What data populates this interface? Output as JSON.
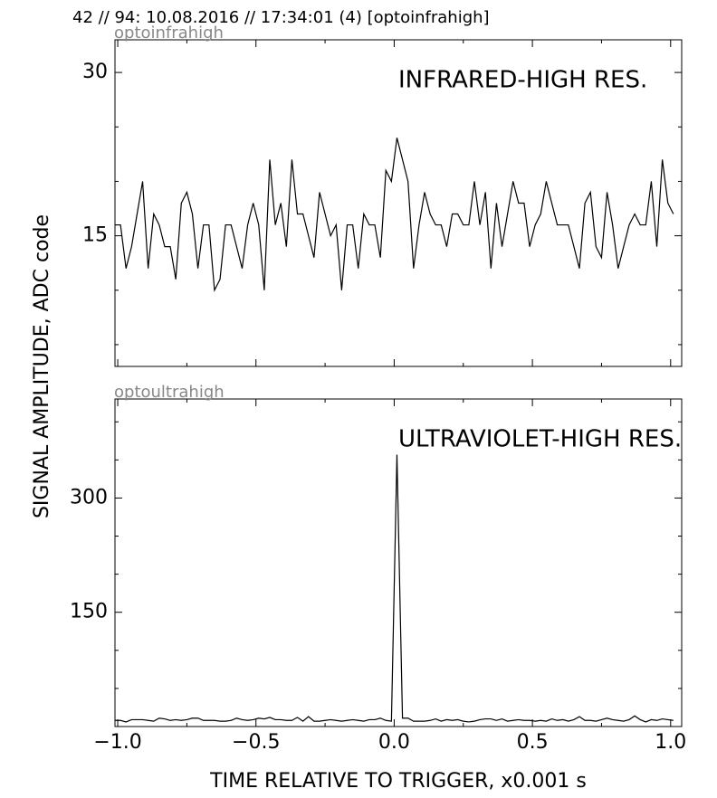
{
  "title": "42 // 94:   10.08.2016 // 17:34:01 (4)  [optoinfrahigh]",
  "ylabel": "SIGNAL AMPLITUDE,  ADC code",
  "xlabel": "TIME RELATIVE TO TRIGGER,   x0.001 s",
  "chart_data": [
    {
      "type": "line",
      "subtitle": "optoinfrahigh",
      "annotation": "INFRARED-HIGH RES.",
      "color": "#000000",
      "x": [
        -1.01,
        -0.99,
        -0.97,
        -0.95,
        -0.93,
        -0.91,
        -0.89,
        -0.87,
        -0.85,
        -0.83,
        -0.81,
        -0.79,
        -0.77,
        -0.75,
        -0.73,
        -0.71,
        -0.69,
        -0.67,
        -0.65,
        -0.63,
        -0.61,
        -0.59,
        -0.57,
        -0.55,
        -0.53,
        -0.51,
        -0.49,
        -0.47,
        -0.45,
        -0.43,
        -0.41,
        -0.39,
        -0.37,
        -0.35,
        -0.33,
        -0.31,
        -0.29,
        -0.27,
        -0.25,
        -0.23,
        -0.21,
        -0.19,
        -0.17,
        -0.15,
        -0.13,
        -0.11,
        -0.09,
        -0.07,
        -0.05,
        -0.03,
        -0.01,
        0.01,
        0.03,
        0.05,
        0.07,
        0.09,
        0.11,
        0.13,
        0.15,
        0.17,
        0.19,
        0.21,
        0.23,
        0.25,
        0.27,
        0.29,
        0.31,
        0.33,
        0.35,
        0.37,
        0.39,
        0.41,
        0.43,
        0.45,
        0.47,
        0.49,
        0.51,
        0.53,
        0.55,
        0.57,
        0.59,
        0.61,
        0.63,
        0.65,
        0.67,
        0.69,
        0.71,
        0.73,
        0.75,
        0.77,
        0.79,
        0.81,
        0.83,
        0.85,
        0.87,
        0.89,
        0.91,
        0.93,
        0.95,
        0.97,
        0.99,
        1.01
      ],
      "values": [
        16,
        16,
        12,
        14,
        17,
        20,
        12,
        17,
        16,
        14,
        14,
        11,
        18,
        19,
        17,
        12,
        16,
        16,
        10,
        11,
        16,
        16,
        14,
        12,
        16,
        18,
        16,
        10,
        22,
        16,
        18,
        14,
        22,
        17,
        17,
        15,
        13,
        19,
        17,
        15,
        16,
        10,
        16,
        16,
        12,
        17,
        16,
        16,
        13,
        21,
        20,
        24,
        22,
        20,
        12,
        16,
        19,
        17,
        16,
        16,
        14,
        17,
        17,
        16,
        16,
        20,
        16,
        19,
        12,
        18,
        14,
        17,
        20,
        18,
        18,
        14,
        16,
        17,
        20,
        18,
        16,
        16,
        16,
        14,
        12,
        18,
        19,
        14,
        13,
        19,
        16,
        12,
        14,
        16,
        17,
        16,
        16,
        20,
        14,
        22,
        18,
        17
      ],
      "xlim": [
        -1.01,
        1.04
      ],
      "ylim": [
        3,
        33
      ],
      "xticks": [
        -1,
        -0.5,
        0,
        0.5,
        1
      ],
      "xminor": [
        -0.75,
        -0.25,
        0.25,
        0.75
      ],
      "xticklabels": false,
      "yticks": [
        15,
        30
      ],
      "yminor": [
        5,
        10,
        20,
        25
      ]
    },
    {
      "type": "line",
      "subtitle": "optoultrahigh",
      "annotation": "ULTRAVIOLET-HIGH RES.",
      "color": "#000000",
      "x": [
        -1.01,
        -0.99,
        -0.97,
        -0.95,
        -0.93,
        -0.91,
        -0.89,
        -0.87,
        -0.85,
        -0.83,
        -0.81,
        -0.79,
        -0.77,
        -0.75,
        -0.73,
        -0.71,
        -0.69,
        -0.67,
        -0.65,
        -0.63,
        -0.61,
        -0.59,
        -0.57,
        -0.55,
        -0.53,
        -0.51,
        -0.49,
        -0.47,
        -0.45,
        -0.43,
        -0.41,
        -0.39,
        -0.37,
        -0.35,
        -0.33,
        -0.31,
        -0.29,
        -0.27,
        -0.25,
        -0.23,
        -0.21,
        -0.19,
        -0.17,
        -0.15,
        -0.13,
        -0.11,
        -0.09,
        -0.07,
        -0.05,
        -0.03,
        -0.01,
        0.01,
        0.03,
        0.05,
        0.07,
        0.09,
        0.11,
        0.13,
        0.15,
        0.17,
        0.19,
        0.21,
        0.23,
        0.25,
        0.27,
        0.29,
        0.31,
        0.33,
        0.35,
        0.37,
        0.39,
        0.41,
        0.43,
        0.45,
        0.47,
        0.49,
        0.51,
        0.53,
        0.55,
        0.57,
        0.59,
        0.61,
        0.63,
        0.65,
        0.67,
        0.69,
        0.71,
        0.73,
        0.75,
        0.77,
        0.79,
        0.81,
        0.83,
        0.85,
        0.87,
        0.89,
        0.91,
        0.93,
        0.95,
        0.97,
        0.99,
        1.01
      ],
      "values": [
        8,
        8,
        6,
        9,
        9,
        9,
        8,
        7,
        11,
        10,
        8,
        9,
        8,
        9,
        11,
        11,
        8,
        8,
        8,
        7,
        7,
        8,
        11,
        9,
        8,
        9,
        11,
        10,
        12,
        9,
        9,
        8,
        8,
        12,
        7,
        13,
        7,
        7,
        8,
        9,
        8,
        7,
        8,
        9,
        8,
        7,
        9,
        9,
        11,
        8,
        7,
        357,
        11,
        11,
        7,
        7,
        7,
        8,
        10,
        7,
        9,
        8,
        9,
        7,
        6,
        7,
        9,
        10,
        10,
        8,
        10,
        7,
        8,
        9,
        8,
        8,
        7,
        8,
        7,
        10,
        8,
        9,
        7,
        9,
        13,
        8,
        8,
        7,
        9,
        11,
        9,
        8,
        7,
        9,
        14,
        9,
        6,
        9,
        8,
        10,
        9,
        8
      ],
      "xlim": [
        -1.01,
        1.04
      ],
      "ylim": [
        0,
        430
      ],
      "xticks": [
        {
          "value": -1,
          "label": "−1.0"
        },
        {
          "value": -0.5,
          "label": "−0.5"
        },
        {
          "value": 0,
          "label": "0.0"
        },
        0.5,
        {
          "value": 1,
          "label": "1.0"
        }
      ],
      "xminor": [
        -0.75,
        -0.25,
        0.25,
        0.75
      ],
      "yticks": [
        150,
        300
      ],
      "yminor": [
        50,
        100,
        200,
        250,
        350,
        400
      ]
    }
  ]
}
